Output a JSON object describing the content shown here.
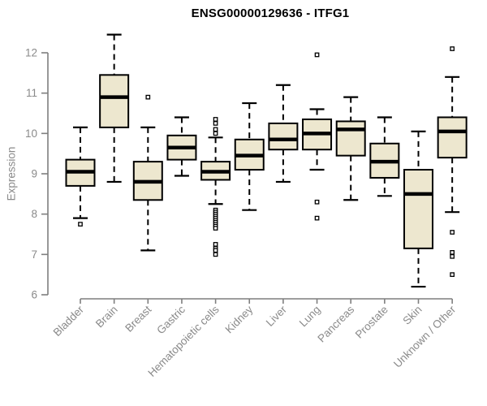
{
  "chart_data": {
    "type": "boxplot",
    "title": "ENSG00000129636 - ITFG1",
    "ylabel": "Expression",
    "xlabel": "",
    "ylim": [
      6,
      12
    ],
    "yticks": [
      6,
      7,
      8,
      9,
      10,
      11,
      12
    ],
    "grid": false,
    "legend": "none",
    "categories": [
      "Bladder",
      "Brain",
      "Breast",
      "Gastric",
      "Hematopoietic cells",
      "Kidney",
      "Liver",
      "Lung",
      "Pancreas",
      "Prostate",
      "Skin",
      "Unknown / Other"
    ],
    "boxes": [
      {
        "label": "Bladder",
        "low": 7.9,
        "q1": 8.7,
        "median": 9.05,
        "q3": 9.35,
        "high": 10.15,
        "outliers": [
          7.75
        ]
      },
      {
        "label": "Brain",
        "low": 8.8,
        "q1": 10.15,
        "median": 10.9,
        "q3": 11.45,
        "high": 12.45,
        "outliers": []
      },
      {
        "label": "Breast",
        "low": 7.1,
        "q1": 8.35,
        "median": 8.8,
        "q3": 9.3,
        "high": 10.15,
        "outliers": [
          10.9
        ]
      },
      {
        "label": "Gastric",
        "low": 8.95,
        "q1": 9.35,
        "median": 9.65,
        "q3": 9.95,
        "high": 10.4,
        "outliers": []
      },
      {
        "label": "Hematopoietic cells",
        "low": 8.25,
        "q1": 8.85,
        "median": 9.05,
        "q3": 9.3,
        "high": 9.9,
        "outliers": [
          10.35,
          10.25,
          10.1,
          10.0,
          8.1,
          8.05,
          8.0,
          7.95,
          7.9,
          7.85,
          7.8,
          7.75,
          7.7,
          7.65,
          7.25,
          7.15,
          7.1,
          7.0
        ]
      },
      {
        "label": "Kidney",
        "low": 8.1,
        "q1": 9.1,
        "median": 9.45,
        "q3": 9.85,
        "high": 10.75,
        "outliers": []
      },
      {
        "label": "Liver",
        "low": 8.8,
        "q1": 9.6,
        "median": 9.85,
        "q3": 10.25,
        "high": 11.2,
        "outliers": []
      },
      {
        "label": "Lung",
        "low": 9.1,
        "q1": 9.6,
        "median": 10.0,
        "q3": 10.35,
        "high": 10.6,
        "outliers": [
          11.95,
          8.3,
          7.9
        ]
      },
      {
        "label": "Pancreas",
        "low": 8.35,
        "q1": 9.45,
        "median": 10.1,
        "q3": 10.3,
        "high": 10.9,
        "outliers": []
      },
      {
        "label": "Prostate",
        "low": 8.45,
        "q1": 8.9,
        "median": 9.3,
        "q3": 9.75,
        "high": 10.4,
        "outliers": []
      },
      {
        "label": "Skin",
        "low": 6.2,
        "q1": 7.15,
        "median": 8.5,
        "q3": 9.1,
        "high": 10.05,
        "outliers": []
      },
      {
        "label": "Unknown / Other",
        "low": 8.05,
        "q1": 9.4,
        "median": 10.05,
        "q3": 10.4,
        "high": 11.4,
        "outliers": [
          12.1,
          7.55,
          7.05,
          6.95,
          6.5
        ]
      }
    ],
    "colors": {
      "box_fill": "#ede7cf",
      "box_stroke": "#000000",
      "median": "#000000",
      "whisker": "#000000",
      "outlier_stroke": "#000000",
      "axis": "#7f7f7f",
      "tick_label": "#8a8a8a",
      "title": "#000000",
      "background": "#ffffff"
    }
  }
}
